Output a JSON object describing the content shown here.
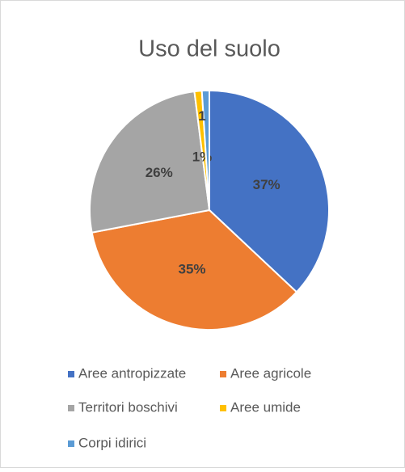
{
  "chart_data": {
    "type": "pie",
    "title": "Uso del suolo",
    "categories": [
      "Aree antropizzate",
      "Aree agricole",
      "Territori boschivi",
      "Aree umide",
      "Corpi idirici"
    ],
    "values": [
      37,
      35,
      26,
      1,
      1
    ],
    "value_labels": [
      "37%",
      "35%",
      "26%",
      "1%",
      "1"
    ],
    "colors": [
      "#4472c4",
      "#ed7d31",
      "#a5a5a5",
      "#ffc000",
      "#5b9bd5"
    ],
    "legend": "bottom"
  }
}
